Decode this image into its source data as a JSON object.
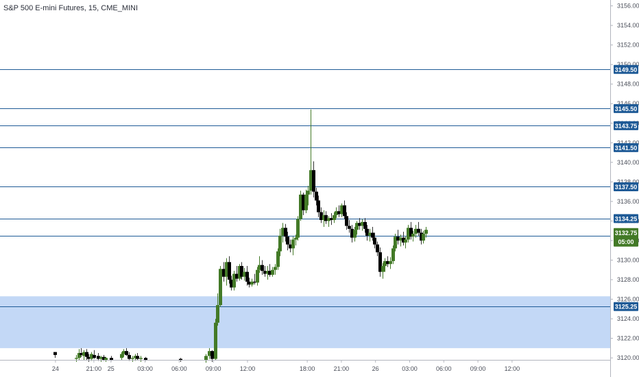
{
  "title": "S&P 500 E-mini Futures, 15, CME_MINI",
  "chart_data": {
    "type": "candlestick",
    "title": "S&P 500 E-mini Futures, 15, CME_MINI",
    "price_axis": {
      "range": [
        3119.8,
        3156.6
      ],
      "ticks": [
        "3156.00",
        "3154.00",
        "3152.00",
        "3150.00",
        "3148.00",
        "3146.00",
        "3144.00",
        "3142.00",
        "3140.00",
        "3138.00",
        "3136.00",
        "3134.00",
        "3132.00",
        "3130.00",
        "3128.00",
        "3126.00",
        "3124.00",
        "3122.00",
        "3120.00"
      ]
    },
    "time_axis": {
      "range": [
        -19.5,
        52
      ],
      "ticks": [
        {
          "label": "24",
          "t": -13
        },
        {
          "label": "21:00",
          "t": -8.5
        },
        {
          "label": "25",
          "t": -6.5
        },
        {
          "label": "03:00",
          "t": -2.5
        },
        {
          "label": "06:00",
          "t": 1.5
        },
        {
          "label": "09:00",
          "t": 5.5
        },
        {
          "label": "12:00",
          "t": 9.5
        },
        {
          "label": "18:00",
          "t": 16.5
        },
        {
          "label": "21:00",
          "t": 20.5
        },
        {
          "label": "26",
          "t": 24.5
        },
        {
          "label": "03:00",
          "t": 28.5
        },
        {
          "label": "06:00",
          "t": 32.5
        },
        {
          "label": "09:00",
          "t": 36.5
        },
        {
          "label": "12:00",
          "t": 40.5
        }
      ]
    },
    "levels": [
      {
        "price": 3149.5,
        "label": "3149.50"
      },
      {
        "price": 3145.5,
        "label": "3145.50"
      },
      {
        "price": 3143.75,
        "label": "3143.75"
      },
      {
        "price": 3141.5,
        "label": "3141.50"
      },
      {
        "price": 3137.5,
        "label": "3137.50"
      },
      {
        "price": 3134.25,
        "label": "3134.25"
      },
      {
        "price": 3132.5,
        "label": "3132.50"
      },
      {
        "price": 3125.25,
        "label": "3125.25"
      }
    ],
    "zone": {
      "from": 3121.0,
      "to": 3126.3
    },
    "last_price": {
      "price": 3132.75,
      "label": "3132.75",
      "countdown": "05:00"
    },
    "colors": {
      "up": "#437a27",
      "down": "#000000",
      "level": "#1e5a96",
      "zone": "#c3d8f6",
      "last": "#437a27"
    },
    "candles": [
      {
        "t": -13.1,
        "o": 3120.6,
        "h": 3120.6,
        "l": 3120.0,
        "c": 3120.3
      },
      {
        "t": -10.6,
        "o": 3119.9,
        "h": 3120.3,
        "l": 3119.6,
        "c": 3120.0
      },
      {
        "t": -10.3,
        "o": 3120.0,
        "h": 3120.9,
        "l": 3119.8,
        "c": 3120.5
      },
      {
        "t": -10.0,
        "o": 3120.5,
        "h": 3121.0,
        "l": 3120.1,
        "c": 3120.3
      },
      {
        "t": -9.7,
        "o": 3120.2,
        "h": 3120.8,
        "l": 3119.8,
        "c": 3120.6
      },
      {
        "t": -9.4,
        "o": 3120.6,
        "h": 3120.9,
        "l": 3119.8,
        "c": 3120.1
      },
      {
        "t": -9.1,
        "o": 3120.1,
        "h": 3120.4,
        "l": 3119.6,
        "c": 3119.9
      },
      {
        "t": -8.8,
        "o": 3119.9,
        "h": 3120.6,
        "l": 3119.7,
        "c": 3120.4
      },
      {
        "t": -8.5,
        "o": 3120.3,
        "h": 3120.8,
        "l": 3119.9,
        "c": 3120.0
      },
      {
        "t": -8.0,
        "o": 3120.2,
        "h": 3120.5,
        "l": 3119.7,
        "c": 3119.9
      },
      {
        "t": -7.7,
        "o": 3119.9,
        "h": 3120.2,
        "l": 3119.6,
        "c": 3120.1
      },
      {
        "t": -7.4,
        "o": 3120.1,
        "h": 3120.3,
        "l": 3119.7,
        "c": 3119.8
      },
      {
        "t": -7.1,
        "o": 3119.8,
        "h": 3120.1,
        "l": 3119.6,
        "c": 3120.0
      },
      {
        "t": -6.5,
        "o": 3120.0,
        "h": 3120.2,
        "l": 3119.7,
        "c": 3119.8
      },
      {
        "t": -5.3,
        "o": 3120.0,
        "h": 3120.6,
        "l": 3119.8,
        "c": 3120.4
      },
      {
        "t": -5.0,
        "o": 3120.4,
        "h": 3120.9,
        "l": 3120.1,
        "c": 3120.7
      },
      {
        "t": -4.7,
        "o": 3120.7,
        "h": 3121.0,
        "l": 3120.2,
        "c": 3120.3
      },
      {
        "t": -4.4,
        "o": 3120.3,
        "h": 3120.6,
        "l": 3119.7,
        "c": 3119.9
      },
      {
        "t": -4.0,
        "o": 3119.9,
        "h": 3120.2,
        "l": 3119.6,
        "c": 3120.0
      },
      {
        "t": -3.7,
        "o": 3120.0,
        "h": 3120.4,
        "l": 3119.7,
        "c": 3120.2
      },
      {
        "t": -3.4,
        "o": 3120.2,
        "h": 3120.5,
        "l": 3119.8,
        "c": 3119.9
      },
      {
        "t": -3.0,
        "o": 3119.9,
        "h": 3120.2,
        "l": 3119.6,
        "c": 3120.0
      },
      {
        "t": -2.5,
        "o": 3120.0,
        "h": 3120.1,
        "l": 3119.7,
        "c": 3119.8
      },
      {
        "t": 1.6,
        "o": 3119.9,
        "h": 3120.0,
        "l": 3119.6,
        "c": 3119.8
      },
      {
        "t": 4.6,
        "o": 3119.8,
        "h": 3120.4,
        "l": 3119.5,
        "c": 3120.2
      },
      {
        "t": 5.0,
        "o": 3120.2,
        "h": 3121.0,
        "l": 3119.9,
        "c": 3120.7
      },
      {
        "t": 5.3,
        "o": 3120.7,
        "h": 3120.8,
        "l": 3119.6,
        "c": 3119.9
      },
      {
        "t": 5.7,
        "o": 3119.9,
        "h": 3124.0,
        "l": 3119.8,
        "c": 3123.6
      },
      {
        "t": 6.0,
        "o": 3123.6,
        "h": 3126.6,
        "l": 3123.3,
        "c": 3125.4
      },
      {
        "t": 6.3,
        "o": 3125.4,
        "h": 3129.4,
        "l": 3125.2,
        "c": 3129.1
      },
      {
        "t": 6.7,
        "o": 3129.1,
        "h": 3129.8,
        "l": 3127.8,
        "c": 3128.3
      },
      {
        "t": 7.0,
        "o": 3128.3,
        "h": 3130.2,
        "l": 3127.4,
        "c": 3129.8
      },
      {
        "t": 7.3,
        "o": 3129.8,
        "h": 3130.4,
        "l": 3127.6,
        "c": 3128.0
      },
      {
        "t": 7.6,
        "o": 3128.0,
        "h": 3128.4,
        "l": 3126.9,
        "c": 3127.2
      },
      {
        "t": 7.9,
        "o": 3127.2,
        "h": 3128.9,
        "l": 3126.9,
        "c": 3128.6
      },
      {
        "t": 8.2,
        "o": 3128.6,
        "h": 3129.4,
        "l": 3127.8,
        "c": 3128.1
      },
      {
        "t": 8.5,
        "o": 3128.1,
        "h": 3129.6,
        "l": 3127.9,
        "c": 3129.4
      },
      {
        "t": 8.8,
        "o": 3129.4,
        "h": 3129.8,
        "l": 3128.0,
        "c": 3128.3
      },
      {
        "t": 9.1,
        "o": 3128.3,
        "h": 3129.2,
        "l": 3127.9,
        "c": 3128.8
      },
      {
        "t": 9.4,
        "o": 3128.8,
        "h": 3129.4,
        "l": 3127.4,
        "c": 3127.8
      },
      {
        "t": 9.7,
        "o": 3127.8,
        "h": 3128.2,
        "l": 3127.2,
        "c": 3127.5
      },
      {
        "t": 10.0,
        "o": 3127.5,
        "h": 3128.1,
        "l": 3127.3,
        "c": 3127.8
      },
      {
        "t": 10.3,
        "o": 3127.8,
        "h": 3128.6,
        "l": 3127.5,
        "c": 3127.7
      },
      {
        "t": 10.6,
        "o": 3127.7,
        "h": 3129.3,
        "l": 3127.4,
        "c": 3129.0
      },
      {
        "t": 10.9,
        "o": 3129.0,
        "h": 3130.4,
        "l": 3128.7,
        "c": 3129.5
      },
      {
        "t": 11.2,
        "o": 3129.5,
        "h": 3130.0,
        "l": 3128.5,
        "c": 3128.9
      },
      {
        "t": 11.5,
        "o": 3128.9,
        "h": 3129.4,
        "l": 3128.3,
        "c": 3128.6
      },
      {
        "t": 11.8,
        "o": 3128.6,
        "h": 3129.4,
        "l": 3128.0,
        "c": 3128.9
      },
      {
        "t": 12.1,
        "o": 3128.9,
        "h": 3129.6,
        "l": 3128.3,
        "c": 3128.5
      },
      {
        "t": 12.4,
        "o": 3128.5,
        "h": 3129.3,
        "l": 3128.3,
        "c": 3129.0
      },
      {
        "t": 12.7,
        "o": 3129.0,
        "h": 3129.6,
        "l": 3128.5,
        "c": 3129.3
      },
      {
        "t": 13.0,
        "o": 3129.3,
        "h": 3131.2,
        "l": 3129.0,
        "c": 3130.9
      },
      {
        "t": 13.3,
        "o": 3130.9,
        "h": 3133.2,
        "l": 3130.4,
        "c": 3132.5
      },
      {
        "t": 13.6,
        "o": 3132.5,
        "h": 3133.8,
        "l": 3131.8,
        "c": 3133.3
      },
      {
        "t": 13.9,
        "o": 3133.3,
        "h": 3133.7,
        "l": 3131.9,
        "c": 3132.4
      },
      {
        "t": 14.2,
        "o": 3132.4,
        "h": 3132.9,
        "l": 3131.0,
        "c": 3131.6
      },
      {
        "t": 14.5,
        "o": 3131.6,
        "h": 3132.1,
        "l": 3130.8,
        "c": 3131.2
      },
      {
        "t": 14.8,
        "o": 3131.2,
        "h": 3132.4,
        "l": 3130.5,
        "c": 3132.1
      },
      {
        "t": 15.1,
        "o": 3132.1,
        "h": 3132.6,
        "l": 3131.5,
        "c": 3132.3
      },
      {
        "t": 15.4,
        "o": 3132.3,
        "h": 3134.5,
        "l": 3132.0,
        "c": 3134.2
      },
      {
        "t": 15.7,
        "o": 3134.2,
        "h": 3137.1,
        "l": 3134.0,
        "c": 3136.7
      },
      {
        "t": 16.0,
        "o": 3136.7,
        "h": 3136.9,
        "l": 3134.6,
        "c": 3135.1
      },
      {
        "t": 16.3,
        "o": 3135.1,
        "h": 3137.2,
        "l": 3134.8,
        "c": 3136.7
      },
      {
        "t": 16.6,
        "o": 3136.7,
        "h": 3137.6,
        "l": 3135.6,
        "c": 3137.1
      },
      {
        "t": 16.9,
        "o": 3137.1,
        "h": 3145.4,
        "l": 3136.7,
        "c": 3139.2
      },
      {
        "t": 17.2,
        "o": 3139.2,
        "h": 3140.1,
        "l": 3136.4,
        "c": 3137.0
      },
      {
        "t": 17.5,
        "o": 3137.0,
        "h": 3137.4,
        "l": 3135.6,
        "c": 3136.1
      },
      {
        "t": 17.8,
        "o": 3136.1,
        "h": 3136.6,
        "l": 3134.4,
        "c": 3134.9
      },
      {
        "t": 18.1,
        "o": 3134.9,
        "h": 3135.4,
        "l": 3133.8,
        "c": 3134.1
      },
      {
        "t": 18.4,
        "o": 3134.1,
        "h": 3135.1,
        "l": 3133.4,
        "c": 3134.6
      },
      {
        "t": 18.7,
        "o": 3134.6,
        "h": 3135.0,
        "l": 3133.7,
        "c": 3134.0
      },
      {
        "t": 19.0,
        "o": 3134.0,
        "h": 3134.5,
        "l": 3133.4,
        "c": 3134.3
      },
      {
        "t": 19.3,
        "o": 3134.3,
        "h": 3134.8,
        "l": 3133.6,
        "c": 3134.1
      },
      {
        "t": 19.6,
        "o": 3134.1,
        "h": 3134.9,
        "l": 3133.8,
        "c": 3134.6
      },
      {
        "t": 19.9,
        "o": 3134.6,
        "h": 3135.4,
        "l": 3134.3,
        "c": 3135.0
      },
      {
        "t": 20.2,
        "o": 3135.0,
        "h": 3135.6,
        "l": 3134.4,
        "c": 3134.7
      },
      {
        "t": 20.5,
        "o": 3134.7,
        "h": 3135.8,
        "l": 3134.4,
        "c": 3135.6
      },
      {
        "t": 20.8,
        "o": 3135.6,
        "h": 3136.1,
        "l": 3134.2,
        "c": 3134.5
      },
      {
        "t": 21.1,
        "o": 3134.5,
        "h": 3134.9,
        "l": 3133.1,
        "c": 3133.5
      },
      {
        "t": 21.4,
        "o": 3133.5,
        "h": 3134.1,
        "l": 3132.8,
        "c": 3133.2
      },
      {
        "t": 21.7,
        "o": 3133.2,
        "h": 3133.6,
        "l": 3131.8,
        "c": 3132.3
      },
      {
        "t": 22.0,
        "o": 3132.3,
        "h": 3133.4,
        "l": 3131.9,
        "c": 3133.1
      },
      {
        "t": 22.3,
        "o": 3133.1,
        "h": 3134.0,
        "l": 3132.6,
        "c": 3133.8
      },
      {
        "t": 22.6,
        "o": 3133.8,
        "h": 3134.3,
        "l": 3133.1,
        "c": 3133.5
      },
      {
        "t": 22.9,
        "o": 3133.5,
        "h": 3134.2,
        "l": 3133.0,
        "c": 3133.9
      },
      {
        "t": 23.2,
        "o": 3133.9,
        "h": 3134.3,
        "l": 3132.8,
        "c": 3133.2
      },
      {
        "t": 23.5,
        "o": 3133.2,
        "h": 3133.6,
        "l": 3132.0,
        "c": 3132.5
      },
      {
        "t": 23.8,
        "o": 3132.5,
        "h": 3133.2,
        "l": 3131.9,
        "c": 3132.8
      },
      {
        "t": 24.1,
        "o": 3132.8,
        "h": 3133.4,
        "l": 3132.0,
        "c": 3132.3
      },
      {
        "t": 24.4,
        "o": 3132.3,
        "h": 3132.8,
        "l": 3131.2,
        "c": 3131.6
      },
      {
        "t": 24.7,
        "o": 3131.6,
        "h": 3131.9,
        "l": 3130.4,
        "c": 3130.8
      },
      {
        "t": 25.0,
        "o": 3130.8,
        "h": 3131.3,
        "l": 3128.3,
        "c": 3128.8
      },
      {
        "t": 25.3,
        "o": 3128.8,
        "h": 3129.7,
        "l": 3128.1,
        "c": 3129.4
      },
      {
        "t": 25.6,
        "o": 3129.4,
        "h": 3130.2,
        "l": 3128.8,
        "c": 3129.9
      },
      {
        "t": 25.9,
        "o": 3129.9,
        "h": 3130.4,
        "l": 3129.3,
        "c": 3129.6
      },
      {
        "t": 26.2,
        "o": 3129.6,
        "h": 3130.3,
        "l": 3129.1,
        "c": 3129.9
      },
      {
        "t": 26.5,
        "o": 3129.9,
        "h": 3131.5,
        "l": 3129.6,
        "c": 3131.2
      },
      {
        "t": 26.8,
        "o": 3131.2,
        "h": 3132.7,
        "l": 3130.9,
        "c": 3132.4
      },
      {
        "t": 27.1,
        "o": 3132.4,
        "h": 3133.1,
        "l": 3131.6,
        "c": 3132.0
      },
      {
        "t": 27.4,
        "o": 3132.0,
        "h": 3132.6,
        "l": 3131.4,
        "c": 3132.3
      },
      {
        "t": 27.7,
        "o": 3132.3,
        "h": 3132.9,
        "l": 3131.5,
        "c": 3131.8
      },
      {
        "t": 28.0,
        "o": 3131.8,
        "h": 3132.4,
        "l": 3131.2,
        "c": 3132.1
      },
      {
        "t": 28.3,
        "o": 3132.1,
        "h": 3133.6,
        "l": 3131.8,
        "c": 3133.3
      },
      {
        "t": 28.6,
        "o": 3133.3,
        "h": 3133.9,
        "l": 3132.1,
        "c": 3132.4
      },
      {
        "t": 28.9,
        "o": 3132.4,
        "h": 3133.0,
        "l": 3131.9,
        "c": 3132.7
      },
      {
        "t": 29.2,
        "o": 3132.7,
        "h": 3133.6,
        "l": 3132.3,
        "c": 3133.2
      },
      {
        "t": 29.5,
        "o": 3133.2,
        "h": 3133.9,
        "l": 3132.5,
        "c": 3132.8
      },
      {
        "t": 29.8,
        "o": 3132.8,
        "h": 3133.2,
        "l": 3131.6,
        "c": 3132.0
      },
      {
        "t": 30.1,
        "o": 3132.0,
        "h": 3133.0,
        "l": 3131.7,
        "c": 3132.7
      },
      {
        "t": 30.4,
        "o": 3132.7,
        "h": 3133.4,
        "l": 3132.3,
        "c": 3133.1
      }
    ]
  }
}
